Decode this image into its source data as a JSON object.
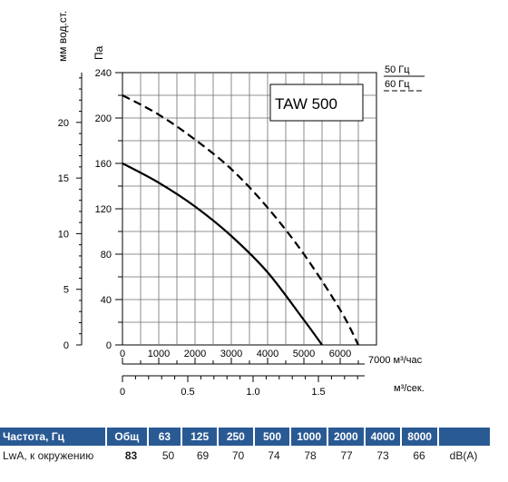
{
  "chart_data": {
    "type": "line",
    "model_label": "TAW 500",
    "left_axis_unit": "мм вод.ст.",
    "pressure_axis_unit": "Па",
    "flow_unit_hour": "7000 м³/час",
    "flow_unit_sec": "м³/сек.",
    "x": {
      "ticks": [
        "0",
        "1000",
        "2000",
        "3000",
        "4000",
        "5000",
        "6000"
      ],
      "lim": [
        0,
        7000
      ]
    },
    "y": {
      "ticks": [
        "0",
        "40",
        "80",
        "120",
        "160",
        "200",
        "240"
      ],
      "lim": [
        0,
        240
      ]
    },
    "mm_ticks": [
      "0",
      "5",
      "10",
      "15",
      "20"
    ],
    "sec_ticks": [
      "0",
      "0.5",
      "1.0",
      "1.5"
    ],
    "series": [
      {
        "name": "50 Гц",
        "style": "solid",
        "color": "#000000",
        "points": [
          [
            0,
            160
          ],
          [
            1000,
            143
          ],
          [
            2000,
            122
          ],
          [
            3000,
            96
          ],
          [
            4000,
            64
          ],
          [
            5000,
            22
          ],
          [
            5500,
            0
          ]
        ]
      },
      {
        "name": "60 Гц",
        "style": "dashed",
        "color": "#000000",
        "points": [
          [
            0,
            220
          ],
          [
            1000,
            203
          ],
          [
            2000,
            181
          ],
          [
            3000,
            155
          ],
          [
            4000,
            121
          ],
          [
            5000,
            80
          ],
          [
            6000,
            31
          ],
          [
            6500,
            0
          ]
        ]
      }
    ],
    "grid": true
  },
  "spec_table": {
    "headers": [
      "Частота, Гц",
      "Общ",
      "63",
      "125",
      "250",
      "500",
      "1000",
      "2000",
      "4000",
      "8000",
      ""
    ],
    "row": [
      "LwA, к окружению",
      "83",
      "50",
      "69",
      "70",
      "74",
      "78",
      "77",
      "73",
      "66",
      "dB(A)"
    ]
  },
  "colors": {
    "table_header_bg": "#2a5a94",
    "table_header_text": "#ffffff"
  }
}
